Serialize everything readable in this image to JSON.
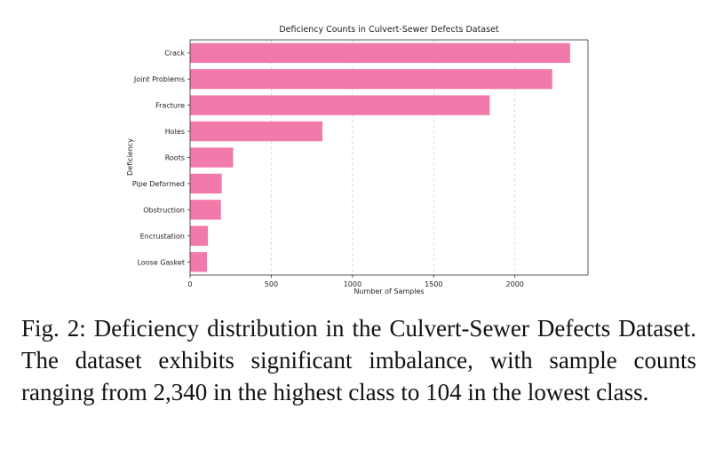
{
  "chart_data": {
    "type": "bar",
    "orientation": "horizontal",
    "title": "Deficiency Counts in Culvert-Sewer Defects Dataset",
    "xlabel": "Number of Samples",
    "ylabel": "Deficiency",
    "categories": [
      "Crack",
      "Joint Problems",
      "Fracture",
      "Holes",
      "Roots",
      "Pipe Deformed",
      "Obstruction",
      "Encrustation",
      "Loose Gasket"
    ],
    "values": [
      2340,
      2230,
      1845,
      815,
      265,
      195,
      190,
      110,
      104
    ],
    "xlim": [
      0,
      2450
    ],
    "xticks": [
      "0",
      "500",
      "1000",
      "1500",
      "2000"
    ],
    "grid": "vertical dashed",
    "bar_color": "#f27aaa"
  },
  "caption": "Fig. 2: Deficiency distribution in the Culvert-Sewer Defects Dataset. The dataset exhibits significant imbalance, with sample counts ranging from 2,340 in the highest class to 104 in the lowest class."
}
